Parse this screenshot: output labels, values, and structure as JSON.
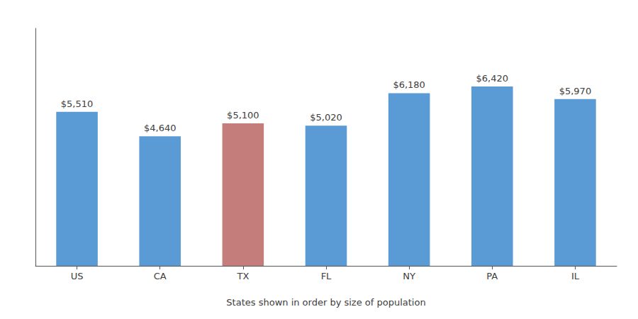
{
  "chart_data": {
    "type": "bar",
    "categories": [
      "US",
      "CA",
      "TX",
      "FL",
      "NY",
      "PA",
      "IL"
    ],
    "values": [
      5510,
      4640,
      5100,
      5020,
      6180,
      6420,
      5970
    ],
    "colors": [
      "#5B9BD5",
      "#5B9BD5",
      "#C47D7A",
      "#5B9BD5",
      "#5B9BD5",
      "#5B9BD5",
      "#5B9BD5"
    ],
    "data_labels": true,
    "value_labels": [
      "$5,510",
      "$4,640",
      "$5,100",
      "$5,020",
      "$6,180",
      "$6,420",
      "$5,970"
    ],
    "xlabel": "States shown in order by size of population",
    "ylim": [
      0,
      8500
    ],
    "tick_labels": "x",
    "grid": false
  }
}
